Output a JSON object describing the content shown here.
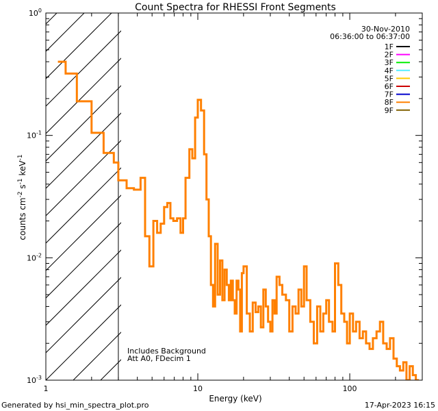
{
  "chart_data": {
    "type": "line",
    "title": "Count Spectra for RHESSI Front Segments",
    "date": "30-Nov-2010",
    "time_range": "06:36:00 to 06:37:00",
    "xlabel": "Energy (keV)",
    "ylabel": "counts cm^-2 s^-1 keV^-1",
    "x_scale": "log",
    "y_scale": "log",
    "xlim": [
      1,
      300
    ],
    "ylim": [
      0.001,
      1
    ],
    "x_ticks": [
      {
        "value": 1,
        "label": "1"
      },
      {
        "value": 10,
        "label": "10"
      },
      {
        "value": 100,
        "label": "100"
      }
    ],
    "y_ticks": [
      {
        "value": 1,
        "base": "10",
        "exp": "0"
      },
      {
        "value": 0.1,
        "base": "10",
        "exp": "-1"
      },
      {
        "value": 0.01,
        "base": "10",
        "exp": "-2"
      },
      {
        "value": 0.001,
        "base": "10",
        "exp": "-3"
      }
    ],
    "excluded_region": {
      "x_from": 1,
      "x_to": 3
    },
    "annotations": [
      "Includes Background",
      "Att A0, FDecim 1"
    ],
    "legend_position": "top-right",
    "legend": [
      {
        "name": "1F",
        "color": "#000000"
      },
      {
        "name": "2F",
        "color": "#ff00ff"
      },
      {
        "name": "3F",
        "color": "#00ee00"
      },
      {
        "name": "4F",
        "color": "#55eeff"
      },
      {
        "name": "5F",
        "color": "#ffcc00"
      },
      {
        "name": "6F",
        "color": "#cc0000"
      },
      {
        "name": "7F",
        "color": "#0000cc"
      },
      {
        "name": "8F",
        "color": "#ff8000"
      },
      {
        "name": "9F",
        "color": "#806000"
      }
    ],
    "series": [
      {
        "name": "8F",
        "color": "#ff8000",
        "steps": [
          [
            1.2,
            1.35,
            0.4
          ],
          [
            1.35,
            1.6,
            0.32
          ],
          [
            1.6,
            2.0,
            0.19
          ],
          [
            2.0,
            2.4,
            0.105
          ],
          [
            2.4,
            2.8,
            0.072
          ],
          [
            2.8,
            3.0,
            0.06
          ],
          [
            3.0,
            3.4,
            0.043
          ],
          [
            3.4,
            3.8,
            0.037
          ],
          [
            3.8,
            4.2,
            0.036
          ],
          [
            4.2,
            4.5,
            0.045
          ],
          [
            4.5,
            4.8,
            0.015
          ],
          [
            4.8,
            5.1,
            0.0085
          ],
          [
            5.1,
            5.4,
            0.02
          ],
          [
            5.4,
            5.7,
            0.016
          ],
          [
            5.7,
            6.0,
            0.019
          ],
          [
            6.0,
            6.3,
            0.026
          ],
          [
            6.3,
            6.6,
            0.028
          ],
          [
            6.6,
            6.9,
            0.021
          ],
          [
            6.9,
            7.3,
            0.02
          ],
          [
            7.3,
            7.7,
            0.021
          ],
          [
            7.7,
            8.0,
            0.016
          ],
          [
            8.0,
            8.3,
            0.021
          ],
          [
            8.3,
            8.8,
            0.045
          ],
          [
            8.8,
            9.2,
            0.077
          ],
          [
            9.2,
            9.6,
            0.065
          ],
          [
            9.6,
            10.0,
            0.14
          ],
          [
            10.0,
            10.5,
            0.195
          ],
          [
            10.5,
            11.0,
            0.16
          ],
          [
            11.0,
            11.4,
            0.07
          ],
          [
            11.4,
            11.8,
            0.03
          ],
          [
            11.8,
            12.2,
            0.015
          ],
          [
            12.2,
            12.6,
            0.006
          ],
          [
            12.6,
            13.0,
            0.004
          ],
          [
            13.0,
            13.5,
            0.013
          ],
          [
            13.5,
            14.0,
            0.005
          ],
          [
            14.0,
            14.5,
            0.0095
          ],
          [
            14.5,
            15.0,
            0.0045
          ],
          [
            15.0,
            15.5,
            0.008
          ],
          [
            15.5,
            16.0,
            0.006
          ],
          [
            16.0,
            16.5,
            0.0045
          ],
          [
            16.5,
            17.0,
            0.0065
          ],
          [
            17.0,
            17.5,
            0.0045
          ],
          [
            17.5,
            18.0,
            0.0035
          ],
          [
            18.0,
            18.5,
            0.0065
          ],
          [
            18.5,
            19.0,
            0.0055
          ],
          [
            19.0,
            19.5,
            0.0025
          ],
          [
            19.5,
            20.0,
            0.0075
          ],
          [
            20.0,
            21.0,
            0.0085
          ],
          [
            21.0,
            22.0,
            0.0035
          ],
          [
            22.0,
            23.0,
            0.0025
          ],
          [
            23.0,
            24.0,
            0.0043
          ],
          [
            24.0,
            25.0,
            0.0036
          ],
          [
            25.0,
            26.0,
            0.004
          ],
          [
            26.0,
            27.0,
            0.0027
          ],
          [
            27.0,
            28.0,
            0.0055
          ],
          [
            28.0,
            29.0,
            0.004
          ],
          [
            29.0,
            30.0,
            0.003
          ],
          [
            30.0,
            31.0,
            0.0025
          ],
          [
            31.0,
            32.0,
            0.0045
          ],
          [
            32.0,
            33.0,
            0.0035
          ],
          [
            33.0,
            34.5,
            0.007
          ],
          [
            34.5,
            36.0,
            0.006
          ],
          [
            36.0,
            38.0,
            0.005
          ],
          [
            38.0,
            40.0,
            0.0045
          ],
          [
            40.0,
            42.0,
            0.0025
          ],
          [
            42.0,
            44.0,
            0.004
          ],
          [
            44.0,
            46.0,
            0.0035
          ],
          [
            46.0,
            48.0,
            0.0055
          ],
          [
            48.0,
            50.0,
            0.004
          ],
          [
            50.0,
            52.0,
            0.0085
          ],
          [
            52.0,
            55.0,
            0.0045
          ],
          [
            55.0,
            58.0,
            0.003
          ],
          [
            58.0,
            61.0,
            0.002
          ],
          [
            61.0,
            64.0,
            0.004
          ],
          [
            64.0,
            67.0,
            0.0025
          ],
          [
            67.0,
            70.0,
            0.0035
          ],
          [
            70.0,
            73.0,
            0.0045
          ],
          [
            73.0,
            77.0,
            0.003
          ],
          [
            77.0,
            80.0,
            0.0025
          ],
          [
            80.0,
            84.0,
            0.009
          ],
          [
            84.0,
            88.0,
            0.006
          ],
          [
            88.0,
            92.0,
            0.0035
          ],
          [
            92.0,
            96.0,
            0.003
          ],
          [
            96.0,
            100.0,
            0.002
          ],
          [
            100.0,
            105.0,
            0.0035
          ],
          [
            105.0,
            110.0,
            0.0025
          ],
          [
            110.0,
            116.0,
            0.003
          ],
          [
            116.0,
            122.0,
            0.0022
          ],
          [
            122.0,
            128.0,
            0.0025
          ],
          [
            128.0,
            135.0,
            0.002
          ],
          [
            135.0,
            142.0,
            0.0018
          ],
          [
            142.0,
            150.0,
            0.0022
          ],
          [
            150.0,
            158.0,
            0.0025
          ],
          [
            158.0,
            166.0,
            0.003
          ],
          [
            166.0,
            175.0,
            0.002
          ],
          [
            175.0,
            184.0,
            0.0018
          ],
          [
            184.0,
            194.0,
            0.0022
          ],
          [
            194.0,
            204.0,
            0.0015
          ],
          [
            204.0,
            214.0,
            0.0013
          ],
          [
            214.0,
            225.0,
            0.0012
          ],
          [
            225.0,
            236.0,
            0.0014
          ],
          [
            236.0,
            248.0,
            0.001
          ],
          [
            248.0,
            260.0,
            0.0013
          ],
          [
            260.0,
            272.0,
            0.0011
          ],
          [
            272.0,
            285.0,
            0.001
          ]
        ]
      }
    ]
  },
  "footer": {
    "generated_by": "Generated by hsi_min_spectra_plot.pro",
    "timestamp": "17-Apr-2023 16:15"
  }
}
